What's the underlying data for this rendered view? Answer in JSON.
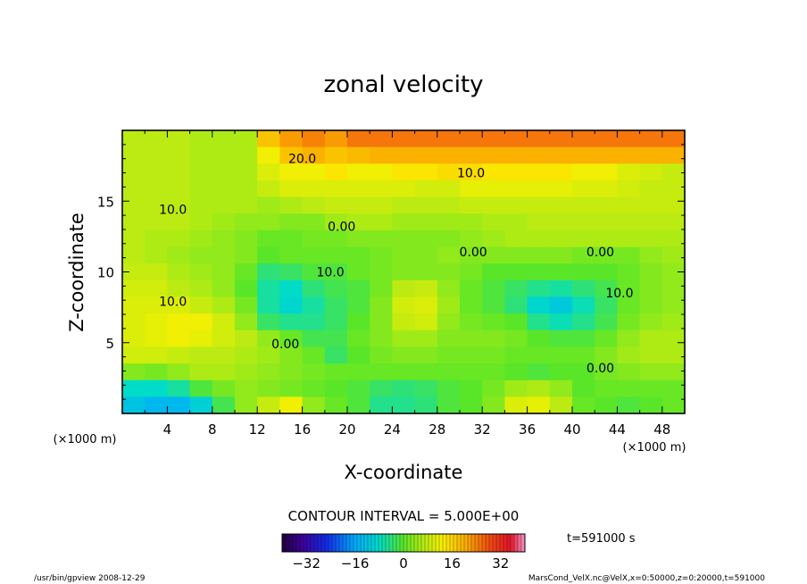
{
  "chart_data": {
    "type": "heatmap",
    "title": "zonal velocity",
    "xlabel": "X-coordinate",
    "ylabel": "Z-coordinate",
    "x_unit": "(×1000 m)",
    "x_ticks": [
      4,
      8,
      12,
      16,
      20,
      24,
      28,
      32,
      36,
      40,
      44,
      48
    ],
    "y_ticks": [
      5,
      10,
      15
    ],
    "xlim": [
      0,
      50
    ],
    "ylim": [
      0,
      20
    ],
    "contour_interval_text": "CONTOUR INTERVAL = 5.000E+00",
    "contour_labels": [
      {
        "text": "20.0",
        "x": 16,
        "y": 17.7
      },
      {
        "text": "10.0",
        "x": 31,
        "y": 16.7
      },
      {
        "text": "10.0",
        "x": 4.5,
        "y": 14.1
      },
      {
        "text": "0.00",
        "x": 19.5,
        "y": 12.9
      },
      {
        "text": "0.00",
        "x": 31.2,
        "y": 11.1
      },
      {
        "text": "0.00",
        "x": 42.5,
        "y": 11.1
      },
      {
        "text": "10.0",
        "x": 18.5,
        "y": 9.7
      },
      {
        "text": "10.0",
        "x": 4.5,
        "y": 7.6
      },
      {
        "text": "0.00",
        "x": 14.5,
        "y": 4.6
      },
      {
        "text": "10.0",
        "x": 44.2,
        "y": 8.2
      },
      {
        "text": "0.00",
        "x": 42.5,
        "y": 2.9
      }
    ],
    "field": [
      [
        7,
        7,
        7,
        6,
        6,
        6,
        18,
        22,
        24,
        22,
        25,
        25,
        25,
        25,
        25,
        25,
        25,
        25,
        25,
        25,
        25,
        25,
        25,
        25,
        25
      ],
      [
        7,
        7,
        7,
        6,
        6,
        6,
        12,
        18,
        20,
        18,
        19,
        20,
        20,
        20,
        20,
        20,
        20,
        20,
        20,
        20,
        20,
        20,
        20,
        20,
        20
      ],
      [
        7,
        7,
        7,
        6,
        6,
        6,
        10,
        12,
        12,
        14,
        12,
        12,
        14,
        14,
        15,
        15,
        14,
        14,
        14,
        14,
        12,
        12,
        10,
        9,
        8
      ],
      [
        7,
        7,
        7,
        6,
        6,
        6,
        8,
        10,
        10,
        10,
        10,
        10,
        10,
        9,
        9,
        11,
        11,
        11,
        11,
        11,
        10,
        10,
        9,
        8,
        8
      ],
      [
        7,
        7,
        7,
        6,
        6,
        6,
        5,
        6,
        7,
        8,
        8,
        8,
        7,
        7,
        7,
        8,
        8,
        8,
        8,
        8,
        8,
        8,
        8,
        8,
        8
      ],
      [
        7,
        7,
        7,
        6,
        5,
        4,
        4,
        3,
        3,
        5,
        6,
        6,
        5,
        5,
        5,
        5,
        6,
        6,
        7,
        7,
        7,
        7,
        7,
        7,
        7
      ],
      [
        7,
        6,
        6,
        5,
        4,
        3,
        1,
        1,
        2,
        2,
        3,
        3,
        3,
        3,
        3,
        4,
        5,
        6,
        6,
        6,
        6,
        6,
        6,
        6,
        6
      ],
      [
        7,
        6,
        5,
        4,
        4,
        3,
        0,
        1,
        1,
        1,
        1,
        2,
        3,
        3,
        4,
        3,
        3,
        3,
        3,
        3,
        2,
        2,
        2,
        4,
        5
      ],
      [
        8,
        8,
        6,
        5,
        4,
        1,
        -4,
        -3,
        -1,
        -1,
        1,
        2,
        3,
        3,
        3,
        2,
        0,
        0,
        0,
        0,
        0,
        0,
        1,
        3,
        4
      ],
      [
        9,
        9,
        7,
        6,
        4,
        0,
        -6,
        -8,
        -4,
        -2,
        -1,
        2,
        7,
        8,
        4,
        1,
        -1,
        -3,
        -5,
        -6,
        -4,
        -2,
        1,
        3,
        4
      ],
      [
        10,
        10,
        10,
        8,
        6,
        2,
        -6,
        -9,
        -6,
        -3,
        -1,
        3,
        9,
        10,
        5,
        1,
        -1,
        -4,
        -9,
        -11,
        -7,
        -3,
        1,
        3,
        4
      ],
      [
        10,
        11,
        12,
        12,
        9,
        4,
        -3,
        -5,
        -5,
        -3,
        0,
        3,
        8,
        9,
        4,
        2,
        1,
        0,
        -5,
        -7,
        -5,
        -2,
        2,
        4,
        5
      ],
      [
        10,
        11,
        12,
        11,
        9,
        7,
        4,
        1,
        -2,
        -2,
        1,
        3,
        5,
        5,
        3,
        3,
        3,
        2,
        0,
        -1,
        -1,
        1,
        4,
        6,
        6
      ],
      [
        9,
        9,
        8,
        7,
        7,
        6,
        5,
        3,
        1,
        -3,
        0,
        2,
        3,
        3,
        2,
        2,
        2,
        1,
        1,
        1,
        1,
        3,
        5,
        6,
        6
      ],
      [
        3,
        2,
        4,
        6,
        6,
        5,
        4,
        3,
        2,
        1,
        1,
        1,
        1,
        1,
        1,
        1,
        1,
        0,
        -1,
        0,
        0,
        2,
        3,
        4,
        4
      ],
      [
        -8,
        -8,
        -6,
        -1,
        2,
        4,
        3,
        2,
        1,
        0,
        -1,
        -3,
        -4,
        -3,
        -1,
        0,
        2,
        5,
        6,
        4,
        0,
        1,
        1,
        1,
        1
      ],
      [
        -12,
        -14,
        -14,
        -10,
        -2,
        4,
        8,
        12,
        4,
        1,
        -1,
        -5,
        -5,
        -4,
        -1,
        0,
        3,
        10,
        11,
        7,
        1,
        0,
        -1,
        0,
        1
      ]
    ],
    "colorbar": {
      "min": -40,
      "max": 40,
      "tick_values": [
        -32,
        -16,
        0,
        16,
        32
      ],
      "tick_labels": [
        "−32",
        "−16",
        "0",
        "16",
        "32"
      ]
    },
    "time_text": "t=591000 s",
    "footer_left": "/usr/bin/gpview   2008-12-29",
    "footer_right": "MarsCond_VelX.nc@VelX,x=0:50000,z=0:20000,t=591000"
  }
}
